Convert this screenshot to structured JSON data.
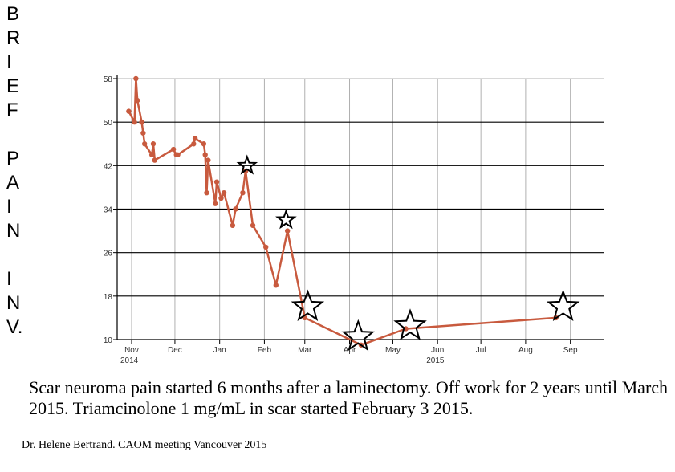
{
  "side_label": [
    "B",
    "R",
    "I",
    "E",
    "F",
    "",
    "P",
    "A",
    "I",
    "N",
    "",
    "I",
    "N",
    "V."
  ],
  "caption": "Scar neuroma pain started 6 months after a laminectomy.  Off work for 2 years until March 2015.  Triamcinolone 1 mg/mL in scar started February 3 2015.",
  "credit": "Dr. Helene Bertrand. CAOM meeting Vancouver 2015",
  "chart_data": {
    "type": "line",
    "title": "",
    "ylabel": "BRIEF PAIN INV.",
    "xlabel": "",
    "ylim": [
      10,
      58
    ],
    "yticks": [
      10,
      18,
      26,
      34,
      42,
      50,
      58
    ],
    "xlim": [
      "2014-10-22",
      "2015-09-24"
    ],
    "xticks": [
      {
        "date": "2014-11-01",
        "label": "Nov",
        "sub": "2014"
      },
      {
        "date": "2014-12-01",
        "label": "Dec",
        "sub": ""
      },
      {
        "date": "2015-01-01",
        "label": "Jan",
        "sub": ""
      },
      {
        "date": "2015-02-01",
        "label": "Feb",
        "sub": ""
      },
      {
        "date": "2015-03-01",
        "label": "Mar",
        "sub": ""
      },
      {
        "date": "2015-04-01",
        "label": "Apr",
        "sub": ""
      },
      {
        "date": "2015-05-01",
        "label": "May",
        "sub": ""
      },
      {
        "date": "2015-06-01",
        "label": "Jun",
        "sub": "2015"
      },
      {
        "date": "2015-07-01",
        "label": "Jul",
        "sub": ""
      },
      {
        "date": "2015-08-01",
        "label": "Aug",
        "sub": ""
      },
      {
        "date": "2015-09-01",
        "label": "Sep",
        "sub": ""
      }
    ],
    "grid": true,
    "line_color": "#c85a3e",
    "series": [
      {
        "points": [
          {
            "x": "2014-10-30",
            "y": 52
          },
          {
            "x": "2014-11-03",
            "y": 50
          },
          {
            "x": "2014-11-04",
            "y": 58
          },
          {
            "x": "2014-11-05",
            "y": 54
          },
          {
            "x": "2014-11-08",
            "y": 50
          },
          {
            "x": "2014-11-09",
            "y": 48
          },
          {
            "x": "2014-11-10",
            "y": 46
          },
          {
            "x": "2014-11-15",
            "y": 44
          },
          {
            "x": "2014-11-16",
            "y": 46
          },
          {
            "x": "2014-11-17",
            "y": 43
          },
          {
            "x": "2014-11-30",
            "y": 45
          },
          {
            "x": "2014-12-02",
            "y": 44
          },
          {
            "x": "2014-12-03",
            "y": 44
          },
          {
            "x": "2014-12-14",
            "y": 46
          },
          {
            "x": "2014-12-15",
            "y": 47
          },
          {
            "x": "2014-12-21",
            "y": 46
          },
          {
            "x": "2014-12-22",
            "y": 44
          },
          {
            "x": "2014-12-23",
            "y": 37
          },
          {
            "x": "2014-12-24",
            "y": 43
          },
          {
            "x": "2014-12-29",
            "y": 35
          },
          {
            "x": "2014-12-30",
            "y": 39
          },
          {
            "x": "2015-01-02",
            "y": 36
          },
          {
            "x": "2015-01-04",
            "y": 37
          },
          {
            "x": "2015-01-10",
            "y": 31
          },
          {
            "x": "2015-01-12",
            "y": 34
          },
          {
            "x": "2015-01-17",
            "y": 37
          },
          {
            "x": "2015-01-19",
            "y": 41
          },
          {
            "x": "2015-01-24",
            "y": 31
          },
          {
            "x": "2015-02-02",
            "y": 27
          },
          {
            "x": "2015-02-09",
            "y": 20
          },
          {
            "x": "2015-02-17",
            "y": 30
          },
          {
            "x": "2015-03-01",
            "y": 14
          },
          {
            "x": "2015-04-09",
            "y": 9
          },
          {
            "x": "2015-05-10",
            "y": 12
          },
          {
            "x": "2015-08-22",
            "y": 14
          }
        ]
      }
    ],
    "stars": [
      {
        "x": "2015-01-20",
        "y": 42
      },
      {
        "x": "2015-02-16",
        "y": 32
      },
      {
        "x": "2015-03-03",
        "y": 16
      },
      {
        "x": "2015-04-07",
        "y": 10.5
      },
      {
        "x": "2015-05-13",
        "y": 12.5
      },
      {
        "x": "2015-08-27",
        "y": 16
      }
    ]
  }
}
